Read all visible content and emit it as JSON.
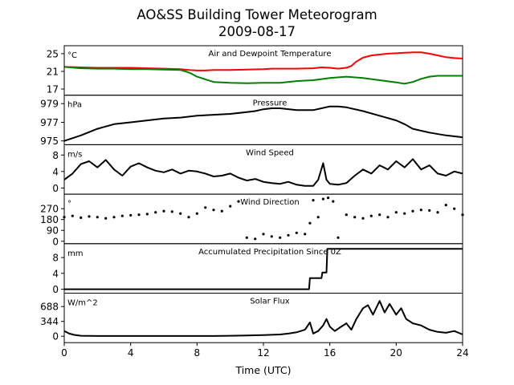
{
  "figure": {
    "title_line1": "AO&SS Building Tower Meteorogram",
    "title_line2": "2009-08-17"
  },
  "chart_data": [
    {
      "type": "line",
      "title": "Air and Dewpoint Temperature",
      "unit_label": "°C",
      "xlabel": "",
      "x_range": [
        0,
        24
      ],
      "ylim": [
        15.6,
        26.8
      ],
      "yticks": [
        17,
        21,
        25
      ],
      "ytick_labels": [
        "17",
        "21",
        "25"
      ],
      "series": [
        {
          "color": "#ff0000",
          "x": [
            0,
            1,
            2,
            3,
            4,
            5,
            6,
            7,
            7.5,
            8,
            8.5,
            9,
            10,
            11,
            12,
            12.5,
            13,
            14,
            15,
            15.5,
            16,
            16.5,
            17,
            17.3,
            17.6,
            18,
            18.5,
            19,
            19.5,
            20,
            20.5,
            21,
            21.5,
            22,
            22.5,
            23,
            23.5,
            24
          ],
          "y": [
            22.0,
            21.9,
            21.8,
            21.8,
            21.8,
            21.7,
            21.6,
            21.5,
            21.3,
            21.2,
            21.2,
            21.3,
            21.3,
            21.4,
            21.5,
            21.6,
            21.6,
            21.6,
            21.7,
            21.9,
            21.8,
            21.6,
            21.8,
            22.2,
            23.2,
            24.1,
            24.6,
            24.8,
            25.0,
            25.1,
            25.2,
            25.3,
            25.3,
            25.0,
            24.6,
            24.2,
            24.0,
            23.9
          ]
        },
        {
          "color": "#008000",
          "x": [
            0,
            1,
            2,
            3,
            4,
            5,
            6,
            7,
            7.3,
            7.6,
            8,
            8.5,
            9,
            10,
            11,
            12,
            13,
            14,
            15,
            16,
            17,
            18,
            19,
            20,
            20.5,
            21,
            21.5,
            22,
            22.5,
            23,
            24
          ],
          "y": [
            22.0,
            21.7,
            21.6,
            21.6,
            21.5,
            21.5,
            21.4,
            21.3,
            21.0,
            20.6,
            19.8,
            19.2,
            18.6,
            18.4,
            18.3,
            18.4,
            18.4,
            18.8,
            19.0,
            19.5,
            19.8,
            19.5,
            19.0,
            18.5,
            18.2,
            18.6,
            19.3,
            19.8,
            20.0,
            20.0,
            20.0
          ]
        }
      ]
    },
    {
      "type": "line",
      "title": "Pressure",
      "unit_label": "hPa",
      "xlabel": "",
      "x_range": [
        0,
        24
      ],
      "ylim": [
        974.6,
        979.9
      ],
      "yticks": [
        975,
        977,
        979
      ],
      "ytick_labels": [
        "975",
        "977",
        "979"
      ],
      "series": [
        {
          "color": "#000000",
          "x": [
            0,
            1,
            2,
            3,
            4,
            5,
            6,
            7,
            8,
            9,
            10,
            11,
            11.5,
            12,
            12.5,
            13,
            14,
            15,
            15.5,
            16,
            16.5,
            17,
            18,
            19,
            20,
            20.5,
            21,
            22,
            23,
            24
          ],
          "y": [
            975.0,
            975.6,
            976.3,
            976.8,
            977.0,
            977.2,
            977.4,
            977.5,
            977.7,
            977.8,
            977.9,
            978.1,
            978.2,
            978.4,
            978.5,
            978.5,
            978.3,
            978.3,
            978.5,
            978.7,
            978.7,
            978.6,
            978.2,
            977.7,
            977.2,
            976.8,
            976.3,
            975.9,
            975.6,
            975.4
          ]
        }
      ]
    },
    {
      "type": "line",
      "title": "Wind Speed",
      "unit_label": "m/s",
      "xlabel": "",
      "x_range": [
        0,
        24
      ],
      "ylim": [
        -1.5,
        10.5
      ],
      "yticks": [
        0,
        4,
        8
      ],
      "ytick_labels": [
        "0",
        "4",
        "8"
      ],
      "series": [
        {
          "color": "#000000",
          "x": [
            0,
            0.5,
            1,
            1.5,
            2,
            2.5,
            3,
            3.5,
            4,
            4.5,
            5,
            5.5,
            6,
            6.5,
            7,
            7.5,
            8,
            8.5,
            9,
            9.5,
            10,
            10.5,
            11,
            11.5,
            12,
            12.5,
            13,
            13.5,
            14,
            14.5,
            15,
            15.3,
            15.6,
            15.8,
            16,
            16.5,
            17,
            17.5,
            18,
            18.5,
            19,
            19.5,
            20,
            20.5,
            21,
            21.5,
            22,
            22.5,
            23,
            23.5,
            24
          ],
          "y": [
            2.0,
            3.5,
            5.8,
            6.5,
            5.0,
            6.8,
            4.5,
            3.0,
            5.2,
            6.0,
            5.0,
            4.2,
            3.8,
            4.5,
            3.5,
            4.2,
            4.0,
            3.5,
            2.8,
            3.0,
            3.5,
            2.5,
            1.8,
            2.2,
            1.5,
            1.2,
            1.0,
            1.5,
            0.8,
            0.5,
            0.5,
            2.0,
            6.0,
            2.0,
            1.0,
            0.8,
            1.2,
            3.0,
            4.5,
            3.5,
            5.5,
            4.5,
            6.5,
            5.0,
            7.0,
            4.5,
            5.5,
            3.5,
            3.0,
            4.0,
            3.5
          ]
        }
      ]
    },
    {
      "type": "scatter",
      "title": "Wind Direction",
      "unit_label": "°",
      "xlabel": "",
      "x_range": [
        0,
        24
      ],
      "ylim": [
        -20,
        390
      ],
      "yticks": [
        0,
        90,
        180,
        270
      ],
      "ytick_labels": [
        "0",
        "90",
        "180",
        "270"
      ],
      "series": [
        {
          "color": "#000000",
          "x": [
            0,
            0.5,
            1,
            1.5,
            2,
            2.5,
            3,
            3.5,
            4,
            4.5,
            5,
            5.5,
            6,
            6.5,
            7,
            7.5,
            8,
            8.5,
            9,
            9.5,
            10,
            10.5,
            11,
            11.5,
            12,
            12.5,
            13,
            13.5,
            14,
            14.5,
            14.8,
            15,
            15.3,
            15.6,
            15.9,
            16.2,
            16.5,
            17,
            17.5,
            18,
            18.5,
            19,
            19.5,
            20,
            20.5,
            21,
            21.5,
            22,
            22.5,
            23,
            23.5,
            24
          ],
          "y": [
            200,
            210,
            195,
            205,
            200,
            190,
            200,
            210,
            215,
            220,
            225,
            240,
            250,
            245,
            230,
            200,
            230,
            280,
            260,
            250,
            290,
            330,
            30,
            20,
            60,
            40,
            30,
            50,
            70,
            60,
            150,
            340,
            200,
            350,
            360,
            330,
            30,
            220,
            200,
            190,
            210,
            220,
            200,
            240,
            230,
            250,
            260,
            255,
            240,
            300,
            270,
            220
          ]
        }
      ]
    },
    {
      "type": "line",
      "title": "Accumulated Precipitation Since 0Z",
      "unit_label": "mm",
      "xlabel": "",
      "x_range": [
        0,
        24
      ],
      "ylim": [
        -1,
        11.5
      ],
      "yticks": [
        0,
        4,
        8
      ],
      "ytick_labels": [
        "0",
        "4",
        "8"
      ],
      "series": [
        {
          "color": "#000000",
          "x": [
            0,
            14.75,
            14.8,
            15.5,
            15.55,
            15.8,
            15.85,
            24
          ],
          "y": [
            0,
            0,
            2.8,
            2.8,
            4.2,
            4.2,
            10.2,
            10.2
          ]
        }
      ]
    },
    {
      "type": "line",
      "title": "Solar Flux",
      "unit_label": "W/m^2",
      "xlabel": "Time (UTC)",
      "x_range": [
        0,
        24
      ],
      "xticks": [
        0,
        4,
        8,
        12,
        16,
        20,
        24
      ],
      "xtick_labels": [
        "0",
        "4",
        "8",
        "12",
        "16",
        "20",
        "24"
      ],
      "ylim": [
        -150,
        1000
      ],
      "yticks": [
        0,
        344,
        688
      ],
      "ytick_labels": [
        "0",
        "344",
        "688"
      ],
      "series": [
        {
          "color": "#000000",
          "x": [
            0,
            0.3,
            0.6,
            1,
            2,
            4,
            6,
            8,
            9,
            10,
            11,
            12,
            13,
            13.5,
            14,
            14.5,
            14.8,
            15,
            15.3,
            15.6,
            15.8,
            16,
            16.3,
            16.6,
            17,
            17.3,
            17.6,
            18,
            18.3,
            18.6,
            19,
            19.3,
            19.6,
            20,
            20.3,
            20.6,
            21,
            21.5,
            22,
            22.5,
            23,
            23.5,
            24
          ],
          "y": [
            120,
            60,
            30,
            10,
            5,
            5,
            5,
            5,
            5,
            10,
            15,
            25,
            40,
            60,
            90,
            150,
            320,
            60,
            120,
            250,
            400,
            220,
            120,
            200,
            300,
            150,
            400,
            650,
            720,
            500,
            820,
            550,
            750,
            500,
            650,
            400,
            300,
            250,
            150,
            100,
            80,
            120,
            40
          ]
        }
      ]
    }
  ]
}
